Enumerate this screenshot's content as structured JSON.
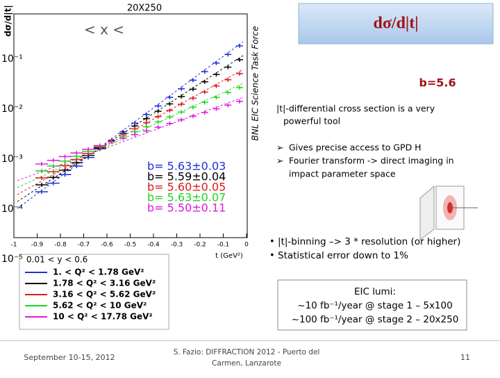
{
  "slide": {
    "title": "dσ/d|t|",
    "b_label": "b=5.6",
    "intro": [
      "|t|-differential cross section is a very",
      "powerful tool"
    ],
    "arrows": [
      [
        "Gives precise access to GPD H"
      ],
      [
        "Fourier transform -> direct imaging in",
        "impact parameter space"
      ]
    ],
    "bullets": [
      "|t|-binning –> 3 * resolution (or higher)",
      "Statistical error down to 1%"
    ],
    "lumi": [
      "EIC lumi:",
      "~10 fb⁻¹/year @ stage 1 – 5x100",
      "~100 fb⁻¹/year @ stage 2 – 20x250"
    ],
    "footer": {
      "date": "September 10-15, 2012",
      "author": [
        "S. Fazio: DIFFRACTION 2012 - Puerto del",
        "Carmen, Lanzarote"
      ],
      "page": "11"
    }
  },
  "plot": {
    "title": "20X250",
    "side_label": "BNL EIC Science Task Force",
    "y_label": "dσ/d|t|",
    "x_label": "t (GeV²)",
    "x_range": "< x <",
    "y_ticks": [
      "10⁻¹",
      "10⁻²",
      "10⁻³",
      "10⁻⁴",
      "10⁻⁵"
    ],
    "x_ticks": [
      "-1",
      "-0.9",
      "-0.8",
      "-0.7",
      "-0.6",
      "-0.5",
      "-0.4",
      "-0.3",
      "-0.2",
      "-0.1",
      "0"
    ],
    "legend_header": "0.01 < y < 0.6",
    "series": [
      {
        "name": "1. < Q² < 1.78 GeV²",
        "color": "#1f2fd8",
        "b": "b= 5.63±0.03"
      },
      {
        "name": "1.78 < Q² < 3.16 GeV²",
        "color": "#000000",
        "b": "b= 5.59±0.04"
      },
      {
        "name": "3.16 < Q² < 5.62 GeV²",
        "color": "#e01818",
        "b": "b= 5.60±0.05"
      },
      {
        "name": "5.62 < Q² < 10 GeV²",
        "color": "#18d818",
        "b": "b= 5.63±0.07"
      },
      {
        "name": "10 < Q² < 17.78 GeV²",
        "color": "#e018e0",
        "b": "b= 5.50±0.11"
      }
    ]
  }
}
